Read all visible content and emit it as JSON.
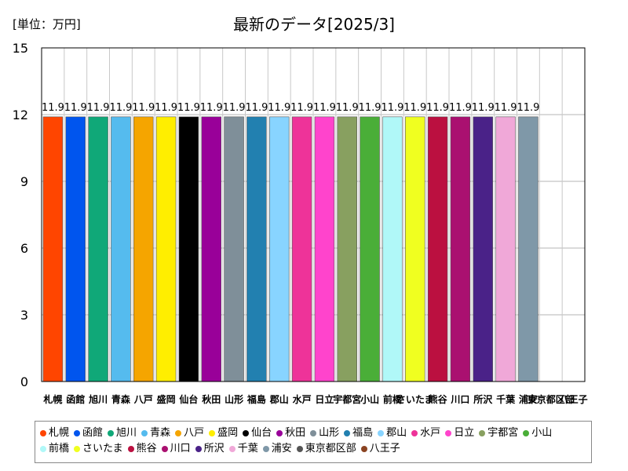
{
  "unit_label": "[単位：万円]",
  "chart_data": {
    "type": "bar",
    "title": "最新のデータ[2025/3]",
    "ylabel": "",
    "xlabel": "",
    "ylim": [
      0,
      15
    ],
    "yticks": [
      0,
      3,
      6,
      9,
      12,
      15
    ],
    "grid": true,
    "categories": [
      "札幌",
      "函館",
      "旭川",
      "青森",
      "八戸",
      "盛岡",
      "仙台",
      "秋田",
      "山形",
      "福島",
      "郡山",
      "水戸",
      "日立",
      "宇都宮",
      "小山",
      "前橋",
      "さいたま",
      "熊谷",
      "川口",
      "所沢",
      "千葉",
      "浦安",
      "東京都区部",
      "八王子"
    ],
    "tick_labels": [
      "札幌",
      "函館",
      "旭川",
      "青森",
      "八戸",
      "盛岡",
      "仙台",
      "秋田",
      "山形",
      "福島",
      "郡山",
      "水戸",
      "日立",
      "宇都宮",
      "小山",
      "前橋",
      "さいたま",
      "熊谷",
      "川口",
      "所沢",
      "千葉",
      "浦安",
      "東京都区部",
      "八王子"
    ],
    "values": [
      11.9,
      11.9,
      11.9,
      11.9,
      11.9,
      11.9,
      11.9,
      11.9,
      11.9,
      11.9,
      11.9,
      11.9,
      11.9,
      11.9,
      11.9,
      11.9,
      11.9,
      11.9,
      11.9,
      11.9,
      11.9,
      11.9,
      null,
      null
    ],
    "data_labels": [
      "11.9",
      "11.9",
      "11.9",
      "11.9",
      "11.9",
      "11.9",
      "11.9",
      "11.9",
      "11.9",
      "11.9",
      "11.9",
      "11.9",
      "11.9",
      "11.9",
      "11.9",
      "11.9",
      "11.9",
      "11.9",
      "11.9",
      "11.9",
      "11.9",
      "11.9",
      "",
      ""
    ],
    "colors": [
      "#ff4500",
      "#0055ee",
      "#10a878",
      "#55bbee",
      "#f5a500",
      "#ffee00",
      "#000000",
      "#990099",
      "#7f8f99",
      "#2280b0",
      "#88d4ff",
      "#ee3399",
      "#ff44cc",
      "#88a060",
      "#4aae38",
      "#b0f8f8",
      "#f0ff20",
      "#bb1040",
      "#aa1070",
      "#4a2288",
      "#f0a8d8",
      "#7f98a8",
      "#555555",
      "#8b4422"
    ],
    "legend_position": "bottom"
  }
}
